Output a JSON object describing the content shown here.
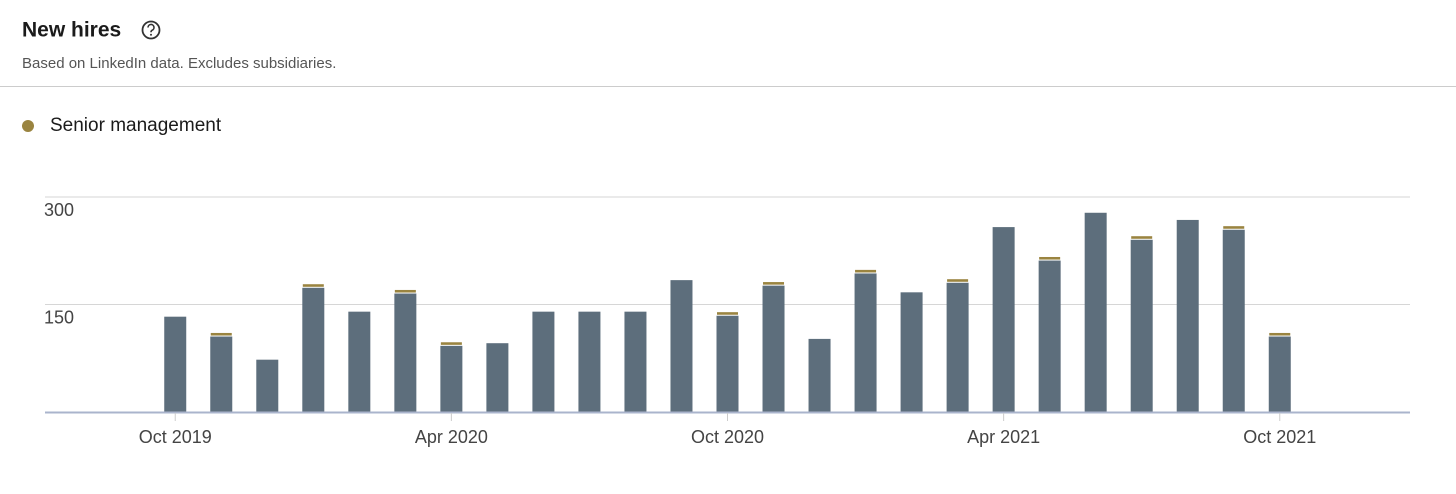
{
  "chart_data": {
    "type": "stacked-bar",
    "title": "New hires",
    "subtitle": "Based on LinkedIn data. Excludes subsidiaries.",
    "categories": [
      "Oct 2019",
      null,
      null,
      null,
      null,
      null,
      "Apr 2020",
      null,
      null,
      null,
      null,
      null,
      "Oct 2020",
      null,
      null,
      null,
      null,
      null,
      "Apr 2021",
      null,
      null,
      null,
      null,
      null,
      "Oct 2021"
    ],
    "series": [
      {
        "color": "#5d6e7c",
        "values": [
          133,
          106,
          73,
          174,
          140,
          166,
          93,
          96,
          140,
          140,
          140,
          184,
          135,
          177,
          102,
          194,
          167,
          181,
          258,
          212,
          278,
          241,
          268,
          255,
          106
        ]
      },
      {
        "name": "Senior management",
        "color": "#9a8440",
        "values": [
          0,
          5,
          0,
          5,
          0,
          5,
          5,
          0,
          0,
          0,
          0,
          0,
          5,
          5,
          0,
          5,
          0,
          5,
          0,
          5,
          0,
          5,
          0,
          5,
          5
        ]
      }
    ],
    "ylim": [
      0,
      300
    ],
    "yticks": [
      150,
      300
    ],
    "grid": true
  }
}
